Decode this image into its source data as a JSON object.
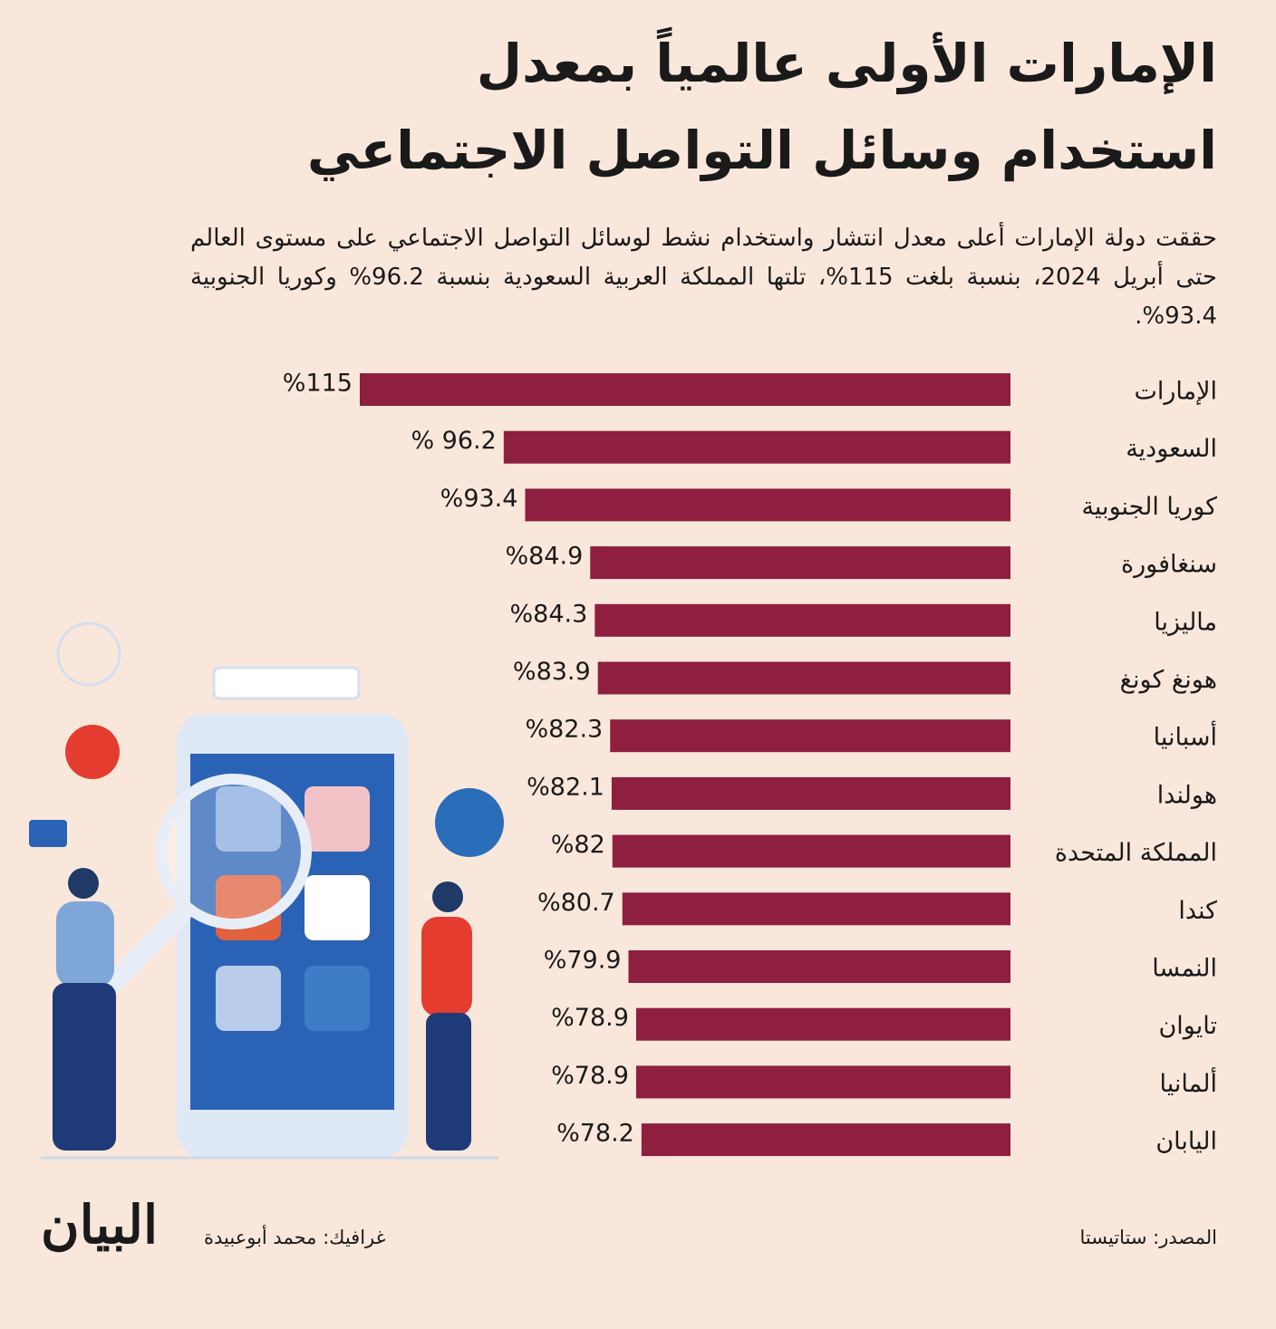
{
  "chart_data": {
    "type": "bar",
    "orientation": "horizontal",
    "title": "الإمارات الأولى عالمياً بمعدل استخدام وسائل التواصل الاجتماعي",
    "subtitle": "حققت دولة الإمارات أعلى معدل انتشار واستخدام نشط لوسائل التواصل الاجتماعي على مستوى العالم حتى أبريل 2024، بنسبة بلغت 115%، تلتها المملكة العربية السعودية بنسبة 96.2% وكوريا الجنوبية 93.4%.",
    "categories": [
      "الإمارات",
      "السعودية",
      "كوريا الجنوبية",
      "سنغافورة",
      "ماليزيا",
      "هونغ كونغ",
      "أسبانيا",
      "هولندا",
      "المملكة المتحدة",
      "كندا",
      "النمسا",
      "تايوان",
      "ألمانيا",
      "اليابان"
    ],
    "values": [
      115,
      96.2,
      93.4,
      84.9,
      84.3,
      83.9,
      82.3,
      82.1,
      82,
      80.7,
      79.9,
      78.9,
      78.9,
      78.2
    ],
    "value_labels": [
      "%115",
      "% 96.2",
      "%93.4",
      "%84.9",
      "%84.3",
      "%83.9",
      "%82.3",
      "%82.1",
      "%82",
      "%80.7",
      "%79.9",
      "%78.9",
      "%78.9",
      "%78.2"
    ],
    "color": "#8e1f3f",
    "xlim": [
      30,
      115
    ],
    "source": "المصدر: ستاتيستا",
    "credit": "غرافيك: محمد أبوعبيدة",
    "logo": "البيان"
  }
}
